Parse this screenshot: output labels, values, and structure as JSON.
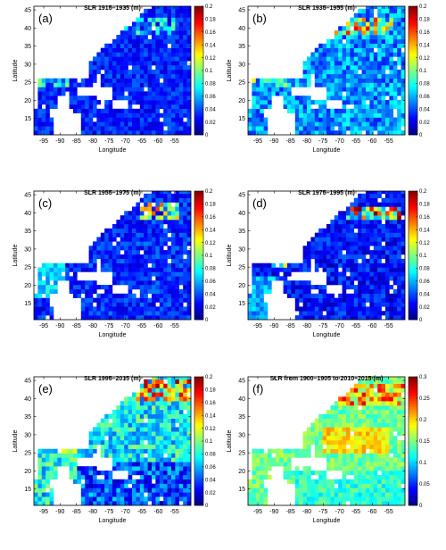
{
  "chart_data": [
    {
      "type": "heatmap",
      "panel_label": "(a)",
      "title": "SLR 1915–1935 (m)",
      "xlabel": "Longitude",
      "ylabel": "Latitude",
      "xlim": [
        -98,
        -50
      ],
      "ylim": [
        10.5,
        46
      ],
      "x_ticks": [
        -95,
        -90,
        -85,
        -80,
        -75,
        -70,
        -65,
        -60,
        -55
      ],
      "y_ticks": [
        15,
        20,
        25,
        30,
        35,
        40,
        45
      ],
      "colorbar_range": [
        0,
        0.2
      ],
      "colorbar_ticks": [
        "0",
        "0.02",
        "0.04",
        "0.06",
        "0.08",
        "0.1",
        "0.12",
        "0.14",
        "0.16",
        "0.18",
        "0.2"
      ],
      "colormap": "jet",
      "grid_step_deg": 1.2,
      "field_pattern": "mostly 0-0.04 m across the basin, small 0.06-0.1 m patches near the Gulf Coast and along 38-42N"
    },
    {
      "type": "heatmap",
      "panel_label": "(b)",
      "title": "SLR 1935–1955 (m)",
      "xlabel": "Longitude",
      "ylabel": "Latitude",
      "xlim": [
        -98,
        -50
      ],
      "ylim": [
        10.5,
        46
      ],
      "x_ticks": [
        -95,
        -90,
        -85,
        -80,
        -75,
        -70,
        -65,
        -60,
        -55
      ],
      "y_ticks": [
        15,
        20,
        25,
        30,
        35,
        40,
        45
      ],
      "colorbar_range": [
        0,
        0.2
      ],
      "colorbar_ticks": [
        "0",
        "0.02",
        "0.04",
        "0.06",
        "0.08",
        "0.1",
        "0.12",
        "0.14",
        "0.16",
        "0.18",
        "0.2"
      ],
      "colormap": "jet",
      "grid_step_deg": 1.2,
      "field_pattern": "0.02-0.08 m background with 0.12-0.18 m maxima along 38-42N between -72 and -55"
    },
    {
      "type": "heatmap",
      "panel_label": "(c)",
      "title": "SLR 1955–1975 (m)",
      "xlabel": "Longitude",
      "ylabel": "Latitude",
      "xlim": [
        -98,
        -50
      ],
      "ylim": [
        10.5,
        46
      ],
      "x_ticks": [
        -95,
        -90,
        -85,
        -80,
        -75,
        -70,
        -65,
        -60,
        -55
      ],
      "y_ticks": [
        15,
        20,
        25,
        30,
        35,
        40,
        45
      ],
      "colorbar_range": [
        0,
        0.2
      ],
      "colorbar_ticks": [
        "0",
        "0.02",
        "0.04",
        "0.06",
        "0.08",
        "0.1",
        "0.12",
        "0.14",
        "0.16",
        "0.18",
        "0.2"
      ],
      "colormap": "jet",
      "grid_step_deg": 1.2,
      "field_pattern": "0.02-0.06 m background, 0.06-0.08 m in the western Gulf, 0.12-0.18 m near 38-42N, -65 to -55"
    },
    {
      "type": "heatmap",
      "panel_label": "(d)",
      "title": "SLR 1975–1995 (m)",
      "xlabel": "Longitude",
      "ylabel": "Latitude",
      "xlim": [
        -98,
        -50
      ],
      "ylim": [
        10.5,
        46
      ],
      "x_ticks": [
        -95,
        -90,
        -85,
        -80,
        -75,
        -70,
        -65,
        -60,
        -55
      ],
      "y_ticks": [
        15,
        20,
        25,
        30,
        35,
        40,
        45
      ],
      "colorbar_range": [
        0,
        0.2
      ],
      "colorbar_ticks": [
        "0",
        "0.02",
        "0.04",
        "0.06",
        "0.08",
        "0.1",
        "0.12",
        "0.14",
        "0.16",
        "0.18",
        "0.2"
      ],
      "colormap": "jet",
      "grid_step_deg": 1.2,
      "field_pattern": "0.01-0.06 m background, 0.16-0.2 m band along 39-41N from -68 to -52, 0.12-0.16 m near 27N -88"
    },
    {
      "type": "heatmap",
      "panel_label": "(e)",
      "title": "SLR 1995–2015 (m)",
      "xlabel": "Longitude",
      "ylabel": "Latitude",
      "xlim": [
        -98,
        -50
      ],
      "ylim": [
        10.5,
        46
      ],
      "x_ticks": [
        -95,
        -90,
        -85,
        -80,
        -75,
        -70,
        -65,
        -60,
        -55
      ],
      "y_ticks": [
        15,
        20,
        25,
        30,
        35,
        40,
        45
      ],
      "colorbar_range": [
        0,
        0.2
      ],
      "colorbar_ticks": [
        "0",
        "0.02",
        "0.04",
        "0.06",
        "0.08",
        "0.1",
        "0.12",
        "0.14",
        "0.16",
        "0.18",
        "0.2"
      ],
      "colormap": "jet",
      "grid_step_deg": 1.2,
      "field_pattern": "0.06-0.12 m across most of the basin, 0.16-0.2 m maxima near 40-44N and 26N -88, lower 0.02-0.06 m in the Caribbean"
    },
    {
      "type": "heatmap",
      "panel_label": "(f)",
      "title": "SLR from 1900–1905 to 2010–2015 (m)",
      "xlabel": "Longitude",
      "ylabel": "Latitude",
      "xlim": [
        -98,
        -50
      ],
      "ylim": [
        10.5,
        46
      ],
      "x_ticks": [
        -95,
        -90,
        -85,
        -80,
        -75,
        -70,
        -65,
        -60,
        -55
      ],
      "y_ticks": [
        15,
        20,
        25,
        30,
        35,
        40,
        45
      ],
      "colorbar_range": [
        0,
        0.3
      ],
      "colorbar_ticks": [
        "0",
        "0.05",
        "0.1",
        "0.15",
        "0.2",
        "0.25",
        "0.3"
      ],
      "colormap": "jet",
      "grid_step_deg": 1.2,
      "field_pattern": "0.12-0.2 m across most of the basin, 0.24-0.3 m along 38-44N, 0.2-0.26 m band near 25-32N from -75 to -55"
    }
  ]
}
